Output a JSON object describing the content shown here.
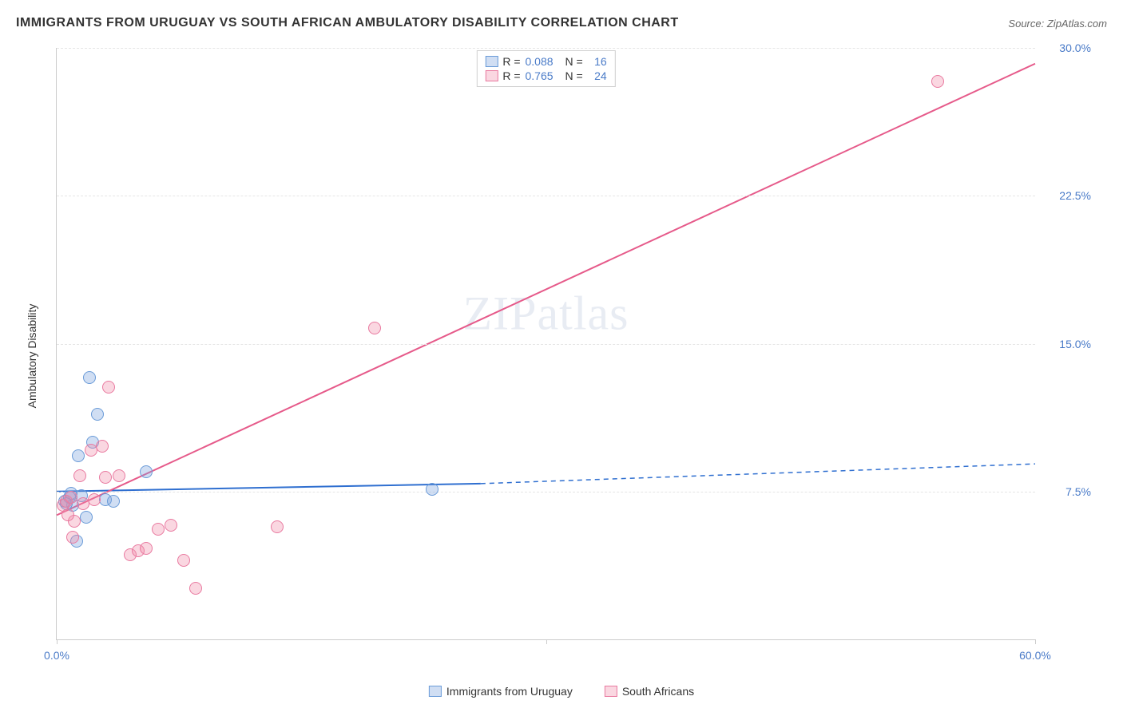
{
  "header": {
    "title": "IMMIGRANTS FROM URUGUAY VS SOUTH AFRICAN AMBULATORY DISABILITY CORRELATION CHART",
    "source_label": "Source:",
    "source_value": "ZipAtlas.com"
  },
  "watermark": "ZIPatlas",
  "chart": {
    "type": "scatter",
    "y_label": "Ambulatory Disability",
    "xlim": [
      0,
      60
    ],
    "ylim": [
      0,
      30
    ],
    "x_ticks": [
      0,
      30,
      60
    ],
    "x_tick_labels": [
      "0.0%",
      "",
      "60.0%"
    ],
    "y_ticks": [
      7.5,
      15.0,
      22.5,
      30.0
    ],
    "y_tick_labels": [
      "7.5%",
      "15.0%",
      "22.5%",
      "30.0%"
    ],
    "grid_color": "#e5e5e5",
    "axis_color": "#cccccc",
    "background_color": "#ffffff",
    "tick_label_color": "#4a7bc8",
    "series": [
      {
        "name": "Immigrants from Uruguay",
        "color_fill": "rgba(120,160,220,0.35)",
        "color_stroke": "#6a9bd8",
        "marker_radius": 8,
        "r": 0.088,
        "n": 16,
        "points": [
          [
            0.5,
            7.0
          ],
          [
            0.8,
            7.2
          ],
          [
            1.0,
            6.8
          ],
          [
            1.5,
            7.3
          ],
          [
            1.8,
            6.2
          ],
          [
            2.0,
            13.3
          ],
          [
            2.2,
            10.0
          ],
          [
            2.5,
            11.4
          ],
          [
            3.0,
            7.1
          ],
          [
            3.5,
            7.0
          ],
          [
            1.2,
            5.0
          ],
          [
            0.6,
            6.9
          ],
          [
            5.5,
            8.5
          ],
          [
            23.0,
            7.6
          ],
          [
            1.3,
            9.3
          ],
          [
            0.9,
            7.4
          ]
        ],
        "regression": {
          "x1": 0,
          "y1": 7.5,
          "x2": 26,
          "y2": 7.9,
          "extend_x": 60,
          "extend_y": 8.9,
          "line_color": "#2f6fd0",
          "line_width": 2
        }
      },
      {
        "name": "South Africans",
        "color_fill": "rgba(240,140,170,0.35)",
        "color_stroke": "#e97aa0",
        "marker_radius": 8,
        "r": 0.765,
        "n": 24,
        "points": [
          [
            0.4,
            6.8
          ],
          [
            0.6,
            7.0
          ],
          [
            0.9,
            7.2
          ],
          [
            1.1,
            6.0
          ],
          [
            1.4,
            8.3
          ],
          [
            1.6,
            6.9
          ],
          [
            2.1,
            9.6
          ],
          [
            2.3,
            7.1
          ],
          [
            2.8,
            9.8
          ],
          [
            3.2,
            12.8
          ],
          [
            3.8,
            8.3
          ],
          [
            4.5,
            4.3
          ],
          [
            5.0,
            4.5
          ],
          [
            5.5,
            4.6
          ],
          [
            6.2,
            5.6
          ],
          [
            7.0,
            5.8
          ],
          [
            7.8,
            4.0
          ],
          [
            8.5,
            2.6
          ],
          [
            13.5,
            5.7
          ],
          [
            19.5,
            15.8
          ],
          [
            3.0,
            8.2
          ],
          [
            1.0,
            5.2
          ],
          [
            0.7,
            6.3
          ],
          [
            54.0,
            28.3
          ]
        ],
        "regression": {
          "x1": 0,
          "y1": 6.3,
          "x2": 60,
          "y2": 29.2,
          "line_color": "#e65a8a",
          "line_width": 2
        }
      }
    ],
    "legend_box": {
      "rows": [
        {
          "swatch_fill": "rgba(120,160,220,0.35)",
          "swatch_stroke": "#6a9bd8",
          "r_label": "R =",
          "r_value": "0.088",
          "n_label": "N =",
          "n_value": "16"
        },
        {
          "swatch_fill": "rgba(240,140,170,0.35)",
          "swatch_stroke": "#e97aa0",
          "r_label": "R =",
          "r_value": "0.765",
          "n_label": "N =",
          "n_value": "24"
        }
      ]
    }
  }
}
